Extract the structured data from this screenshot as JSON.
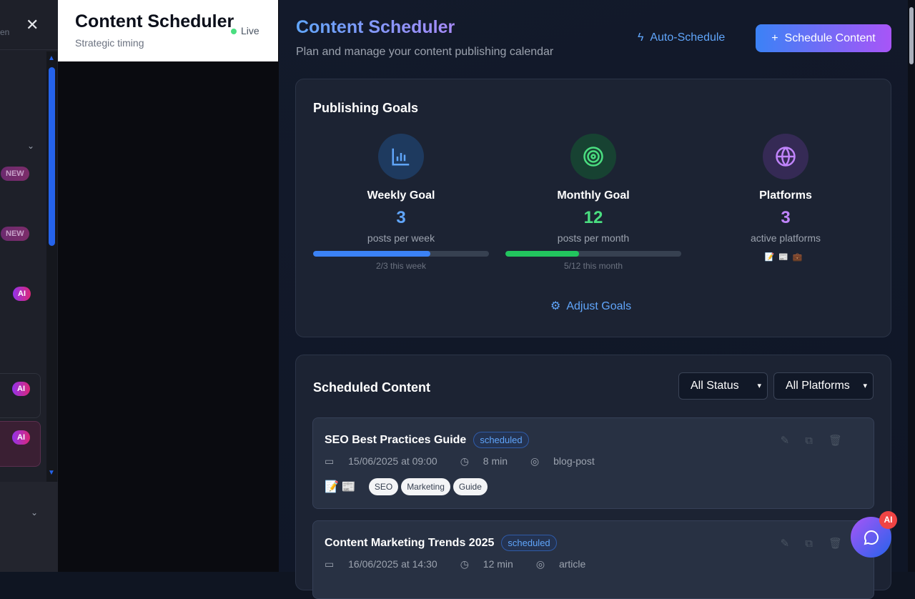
{
  "sidebar": {
    "fragment": "en",
    "badges": {
      "new": "NEW",
      "ai": "AI"
    }
  },
  "panel": {
    "title": "Content Scheduler",
    "subtitle": "Strategic timing",
    "status": "Live"
  },
  "header": {
    "title": "Content Scheduler",
    "subtitle": "Plan and manage your content publishing calendar",
    "auto_schedule": "Auto-Schedule",
    "schedule_content": "Schedule Content"
  },
  "goals": {
    "title": "Publishing Goals",
    "weekly": {
      "label": "Weekly Goal",
      "value": "3",
      "unit": "posts per week",
      "progress_text": "2/3 this week",
      "progress": 0.667,
      "color": "#3b82f6"
    },
    "monthly": {
      "label": "Monthly Goal",
      "value": "12",
      "unit": "posts per month",
      "progress_text": "5/12 this month",
      "progress": 0.4167,
      "color": "#22c55e"
    },
    "platforms": {
      "label": "Platforms",
      "value": "3",
      "unit": "active platforms",
      "icons": [
        "memo-icon",
        "newspaper-icon",
        "briefcase-icon"
      ]
    },
    "adjust": "Adjust Goals"
  },
  "scheduled": {
    "title": "Scheduled Content",
    "status_filter": "All Status",
    "platform_filter": "All Platforms",
    "items": [
      {
        "title": "SEO Best Practices Guide",
        "status": "scheduled",
        "date": "15/06/2025 at 09:00",
        "duration": "8 min",
        "type": "blog-post",
        "tags": [
          "SEO",
          "Marketing",
          "Guide"
        ]
      },
      {
        "title": "Content Marketing Trends 2025",
        "status": "scheduled",
        "date": "16/06/2025 at 14:30",
        "duration": "12 min",
        "type": "article",
        "tags": []
      }
    ]
  },
  "chat": {
    "badge": "AI"
  }
}
